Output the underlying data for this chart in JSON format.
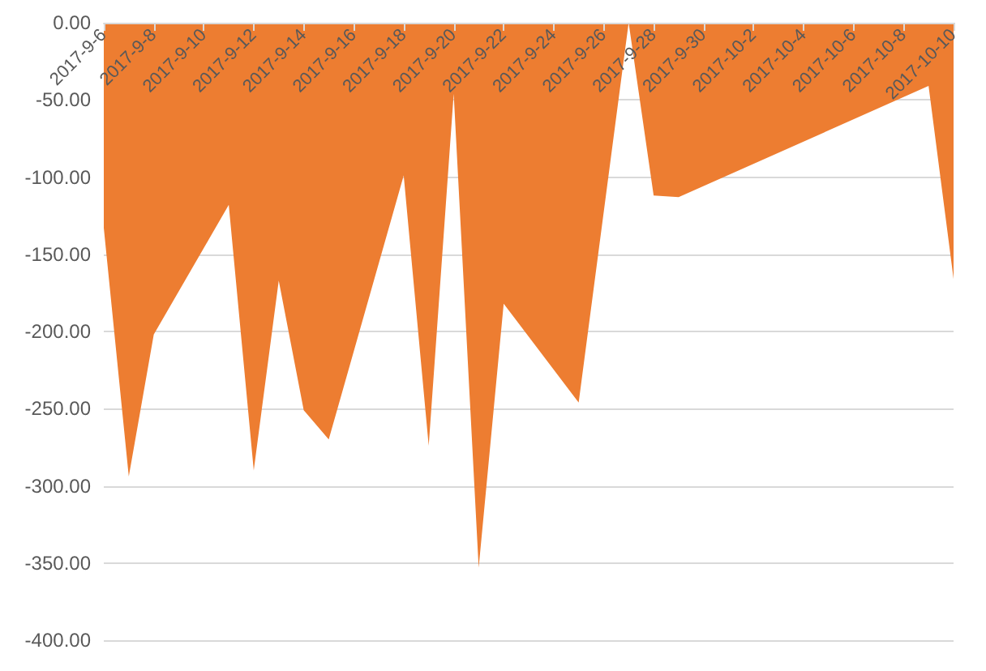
{
  "chart_data": {
    "type": "area",
    "x": [
      "2017-09-06",
      "2017-09-07",
      "2017-09-08",
      "2017-09-11",
      "2017-09-12",
      "2017-09-13",
      "2017-09-14",
      "2017-09-15",
      "2017-09-18",
      "2017-09-19",
      "2017-09-20",
      "2017-09-21",
      "2017-09-22",
      "2017-09-25",
      "2017-09-27",
      "2017-09-28",
      "2017-09-29",
      "2017-10-09",
      "2017-10-10"
    ],
    "series": [
      {
        "color": "#ed7d31",
        "values": [
          -133,
          -294,
          -202,
          -118,
          -290,
          -167,
          -251,
          -270,
          -99,
          -274,
          -46,
          -353,
          -182,
          -246,
          0,
          -112,
          -113,
          -41,
          -166
        ]
      }
    ],
    "xlim": [
      "2017-09-06",
      "2017-10-10"
    ],
    "xticks": [
      {
        "value": "2017-09-06",
        "label": "2017-9-6"
      },
      {
        "value": "2017-09-08",
        "label": "2017-9-8"
      },
      {
        "value": "2017-09-10",
        "label": "2017-9-10"
      },
      {
        "value": "2017-09-12",
        "label": "2017-9-12"
      },
      {
        "value": "2017-09-14",
        "label": "2017-9-14"
      },
      {
        "value": "2017-09-16",
        "label": "2017-9-16"
      },
      {
        "value": "2017-09-18",
        "label": "2017-9-18"
      },
      {
        "value": "2017-09-20",
        "label": "2017-9-20"
      },
      {
        "value": "2017-09-22",
        "label": "2017-9-22"
      },
      {
        "value": "2017-09-24",
        "label": "2017-9-24"
      },
      {
        "value": "2017-09-26",
        "label": "2017-9-26"
      },
      {
        "value": "2017-09-28",
        "label": "2017-9-28"
      },
      {
        "value": "2017-09-30",
        "label": "2017-9-30"
      },
      {
        "value": "2017-10-02",
        "label": "2017-10-2"
      },
      {
        "value": "2017-10-04",
        "label": "2017-10-4"
      },
      {
        "value": "2017-10-06",
        "label": "2017-10-6"
      },
      {
        "value": "2017-10-08",
        "label": "2017-10-8"
      },
      {
        "value": "2017-10-10",
        "label": "2017-10-10"
      }
    ],
    "ylim": [
      -400,
      0
    ],
    "yticks": [
      {
        "value": 0,
        "label": "0.00"
      },
      {
        "value": -50,
        "label": "-50.00"
      },
      {
        "value": -100,
        "label": "-100.00"
      },
      {
        "value": -150,
        "label": "-150.00"
      },
      {
        "value": -200,
        "label": "-200.00"
      },
      {
        "value": -250,
        "label": "-250.00"
      },
      {
        "value": -300,
        "label": "-300.00"
      },
      {
        "value": -350,
        "label": "-350.00"
      },
      {
        "value": -400,
        "label": "-400.00"
      }
    ],
    "grid": "y"
  }
}
